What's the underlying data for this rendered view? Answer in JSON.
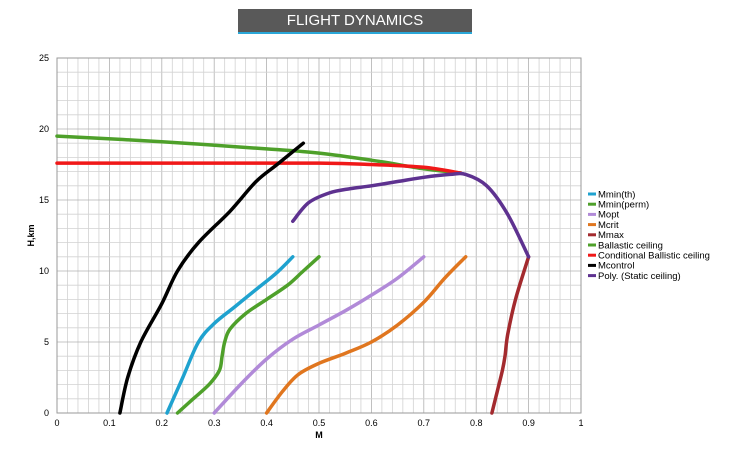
{
  "header": {
    "title": "FLIGHT DYNAMICS"
  },
  "chart_data": {
    "type": "line",
    "xlabel": "M",
    "ylabel": "H,km",
    "xlim": [
      0,
      1
    ],
    "ylim": [
      0,
      25
    ],
    "x_ticks": [
      "0",
      "0.1",
      "0.2",
      "0.3",
      "0.4",
      "0.5",
      "0.6",
      "0.7",
      "0.8",
      "0.9",
      "1"
    ],
    "y_ticks": [
      "0",
      "5",
      "10",
      "15",
      "20",
      "25"
    ],
    "grid": true,
    "legend_position": "right",
    "series": [
      {
        "name": "Mmin(th)",
        "color": "#1fa2cf",
        "points": [
          [
            0.21,
            0
          ],
          [
            0.24,
            2.5
          ],
          [
            0.27,
            5
          ],
          [
            0.3,
            6.3
          ],
          [
            0.34,
            7.5
          ],
          [
            0.38,
            8.7
          ],
          [
            0.42,
            9.9
          ],
          [
            0.45,
            11
          ]
        ]
      },
      {
        "name": "Mmin(perm)",
        "color": "#4ea02a",
        "points": [
          [
            0.23,
            0
          ],
          [
            0.26,
            1
          ],
          [
            0.29,
            2
          ],
          [
            0.31,
            3
          ],
          [
            0.315,
            4
          ],
          [
            0.32,
            5
          ],
          [
            0.33,
            5.9
          ],
          [
            0.36,
            7
          ],
          [
            0.4,
            8
          ],
          [
            0.44,
            9
          ],
          [
            0.47,
            10
          ],
          [
            0.5,
            11
          ]
        ]
      },
      {
        "name": "Mopt",
        "color": "#b18ad8",
        "points": [
          [
            0.3,
            0
          ],
          [
            0.35,
            2
          ],
          [
            0.4,
            3.8
          ],
          [
            0.45,
            5.2
          ],
          [
            0.5,
            6.2
          ],
          [
            0.55,
            7.2
          ],
          [
            0.6,
            8.3
          ],
          [
            0.65,
            9.5
          ],
          [
            0.7,
            11
          ]
        ]
      },
      {
        "name": "Mcrit",
        "color": "#e0761f",
        "points": [
          [
            0.4,
            0
          ],
          [
            0.43,
            1.5
          ],
          [
            0.46,
            2.7
          ],
          [
            0.5,
            3.5
          ],
          [
            0.55,
            4.2
          ],
          [
            0.6,
            5
          ],
          [
            0.65,
            6.2
          ],
          [
            0.7,
            7.8
          ],
          [
            0.74,
            9.5
          ],
          [
            0.78,
            11
          ]
        ]
      },
      {
        "name": "Mmax",
        "color": "#a32a2e",
        "points": [
          [
            0.83,
            0
          ],
          [
            0.84,
            1.5
          ],
          [
            0.85,
            3
          ],
          [
            0.855,
            4
          ],
          [
            0.86,
            5.5
          ],
          [
            0.875,
            8
          ],
          [
            0.9,
            11
          ]
        ]
      },
      {
        "name": "Ballastic ceiling",
        "color": "#4ea02a",
        "points": [
          [
            0,
            19.5
          ],
          [
            0.2,
            19.1
          ],
          [
            0.4,
            18.6
          ],
          [
            0.5,
            18.3
          ],
          [
            0.6,
            17.8
          ],
          [
            0.7,
            17.2
          ],
          [
            0.77,
            16.9
          ]
        ]
      },
      {
        "name": "Conditional Ballistic ceiling",
        "color": "#f01818",
        "points": [
          [
            0,
            17.6
          ],
          [
            0.3,
            17.6
          ],
          [
            0.5,
            17.6
          ],
          [
            0.6,
            17.5
          ],
          [
            0.7,
            17.3
          ],
          [
            0.77,
            16.9
          ]
        ]
      },
      {
        "name": "Mcontrol",
        "color": "#000000",
        "points": [
          [
            0.12,
            0
          ],
          [
            0.135,
            2.5
          ],
          [
            0.16,
            5
          ],
          [
            0.2,
            7.7
          ],
          [
            0.23,
            10
          ],
          [
            0.27,
            12
          ],
          [
            0.33,
            14.2
          ],
          [
            0.38,
            16.3
          ],
          [
            0.42,
            17.5
          ],
          [
            0.47,
            19
          ]
        ]
      },
      {
        "name": "Poly. (Static ceiling)",
        "color": "#5e3290",
        "points": [
          [
            0.45,
            13.5
          ],
          [
            0.48,
            14.8
          ],
          [
            0.52,
            15.5
          ],
          [
            0.56,
            15.8
          ],
          [
            0.6,
            16
          ],
          [
            0.65,
            16.3
          ],
          [
            0.7,
            16.6
          ],
          [
            0.75,
            16.8
          ],
          [
            0.78,
            16.8
          ],
          [
            0.82,
            16
          ],
          [
            0.86,
            14
          ],
          [
            0.9,
            11
          ]
        ]
      }
    ]
  }
}
